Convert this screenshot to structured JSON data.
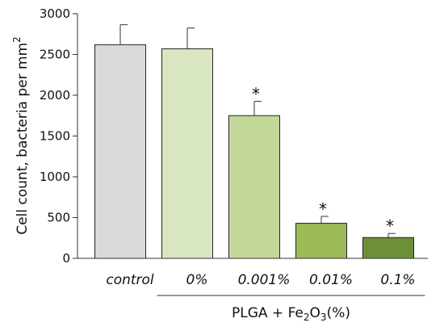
{
  "chart_data": {
    "type": "bar",
    "title": "",
    "ylabel": "Cell count, bacteria per mm",
    "ylabel_superscript": "2",
    "ylim": [
      0,
      3000
    ],
    "yticks": [
      0,
      500,
      1000,
      1500,
      2000,
      2500,
      3000
    ],
    "categories": [
      "control",
      "0%",
      "0.001%",
      "0.01%",
      "0.1%"
    ],
    "values": [
      2620,
      2570,
      1750,
      430,
      255
    ],
    "errors": [
      245,
      255,
      175,
      85,
      50
    ],
    "significance": [
      "",
      "",
      "*",
      "*",
      "*"
    ],
    "colors": [
      "#d9d9d9",
      "#d9e6c2",
      "#c4d89a",
      "#9bbb59",
      "#6e8f3a"
    ],
    "group_bracket": {
      "first_category": 1,
      "last_category": 4,
      "label_parts": [
        "PLGA + Fe",
        "2",
        "O",
        "3",
        "(%)"
      ]
    }
  }
}
